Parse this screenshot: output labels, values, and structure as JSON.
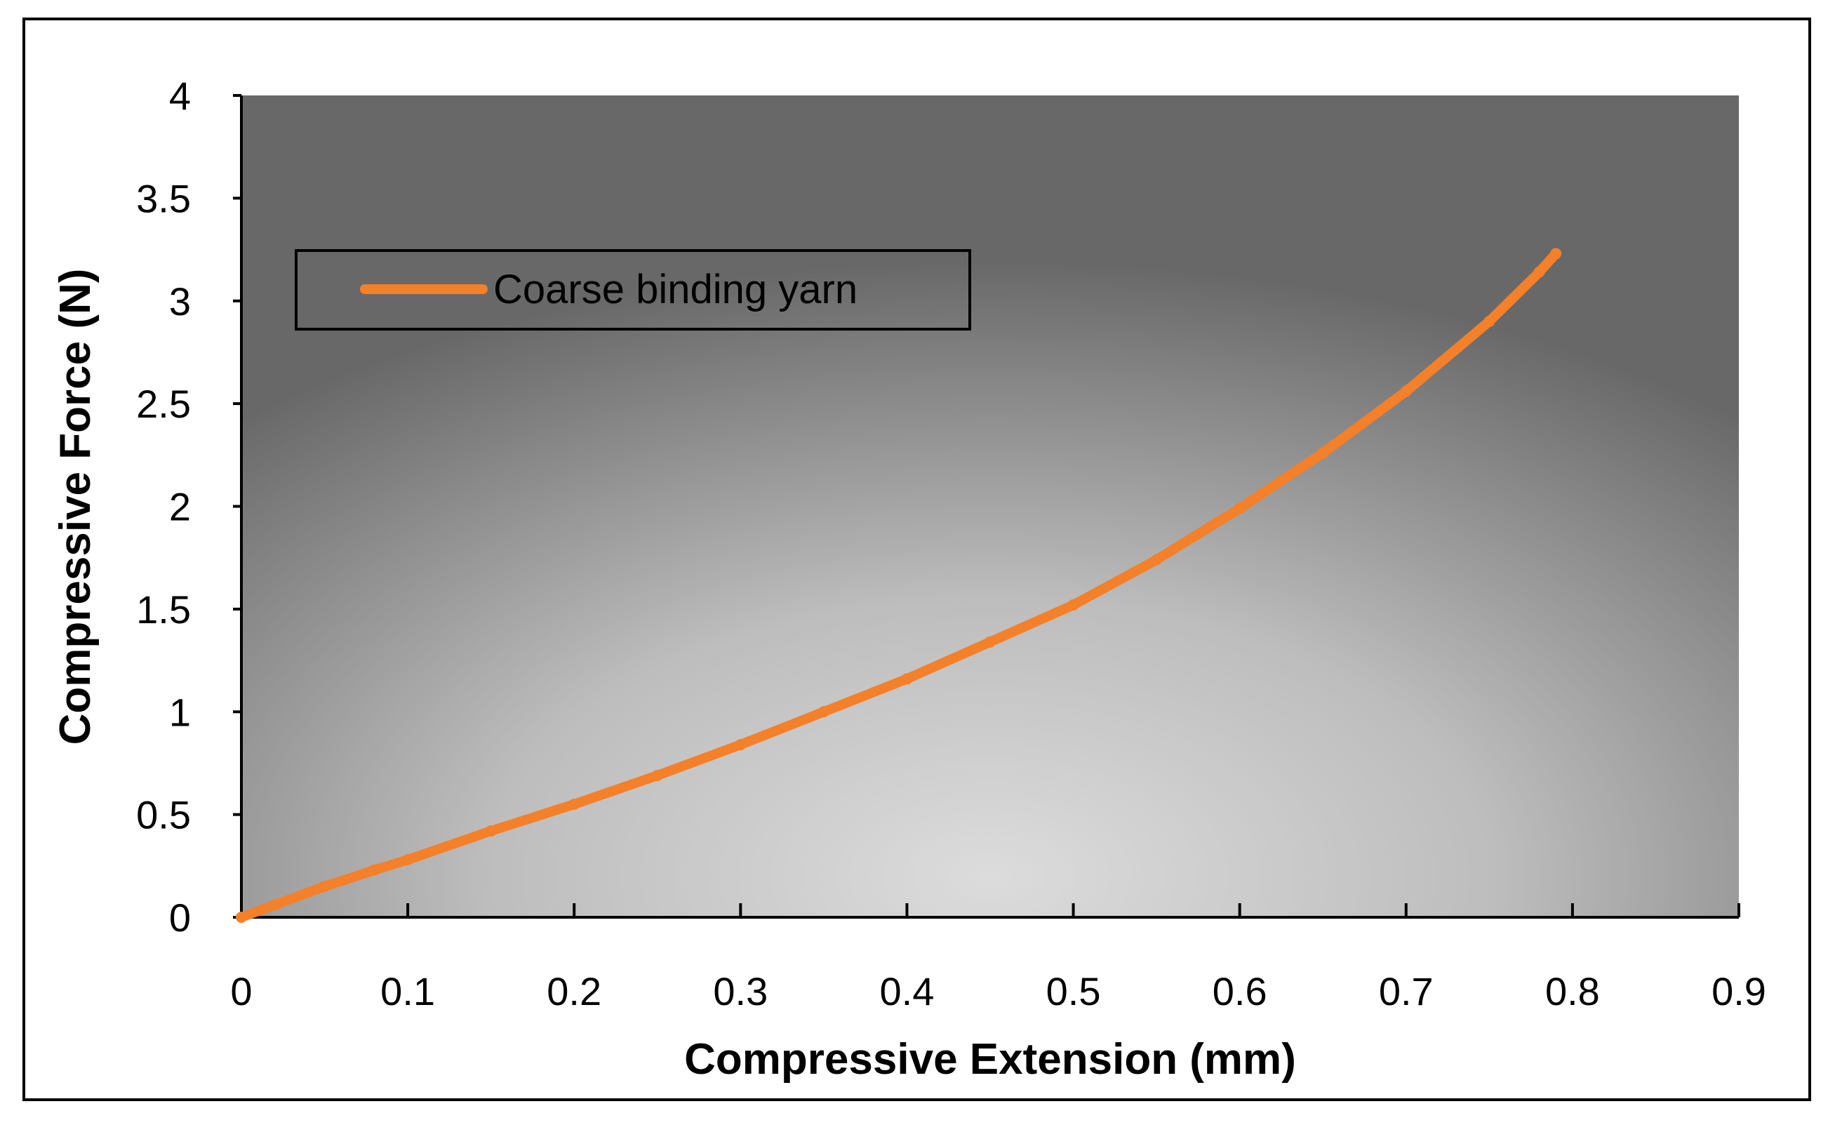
{
  "chart_data": {
    "type": "line",
    "title": "",
    "xlabel": "Compressive Extension (mm)",
    "ylabel": "Compressive Force (N)",
    "xlim": [
      0,
      0.9
    ],
    "ylim": [
      0,
      4
    ],
    "x_ticks": [
      0,
      0.1,
      0.2,
      0.3,
      0.4,
      0.5,
      0.6,
      0.7,
      0.8,
      0.9
    ],
    "x_tick_labels": [
      "0",
      "0.1",
      "0.2",
      "0.3",
      "0.4",
      "0.5",
      "0.6",
      "0.7",
      "0.8",
      "0.9"
    ],
    "y_ticks": [
      0,
      0.5,
      1,
      1.5,
      2,
      2.5,
      3,
      3.5,
      4
    ],
    "y_tick_labels": [
      "0",
      "0.5",
      "1",
      "1.5",
      "2",
      "2.5",
      "3",
      "3.5",
      "4"
    ],
    "grid": false,
    "legend_position": "top-left",
    "series": [
      {
        "name": "Coarse binding yarn",
        "color": "#F4802A",
        "x": [
          0,
          0.02,
          0.05,
          0.08,
          0.1,
          0.15,
          0.2,
          0.25,
          0.3,
          0.35,
          0.4,
          0.45,
          0.5,
          0.55,
          0.6,
          0.65,
          0.7,
          0.75,
          0.78,
          0.79
        ],
        "y": [
          0,
          0.06,
          0.15,
          0.23,
          0.28,
          0.42,
          0.55,
          0.69,
          0.84,
          1.0,
          1.16,
          1.34,
          1.52,
          1.74,
          1.99,
          2.26,
          2.56,
          2.9,
          3.14,
          3.23
        ]
      }
    ]
  },
  "colors": {
    "plot_center": "#dcdcdc",
    "plot_edge": "#6a6a6a",
    "series": "#F4802A"
  }
}
